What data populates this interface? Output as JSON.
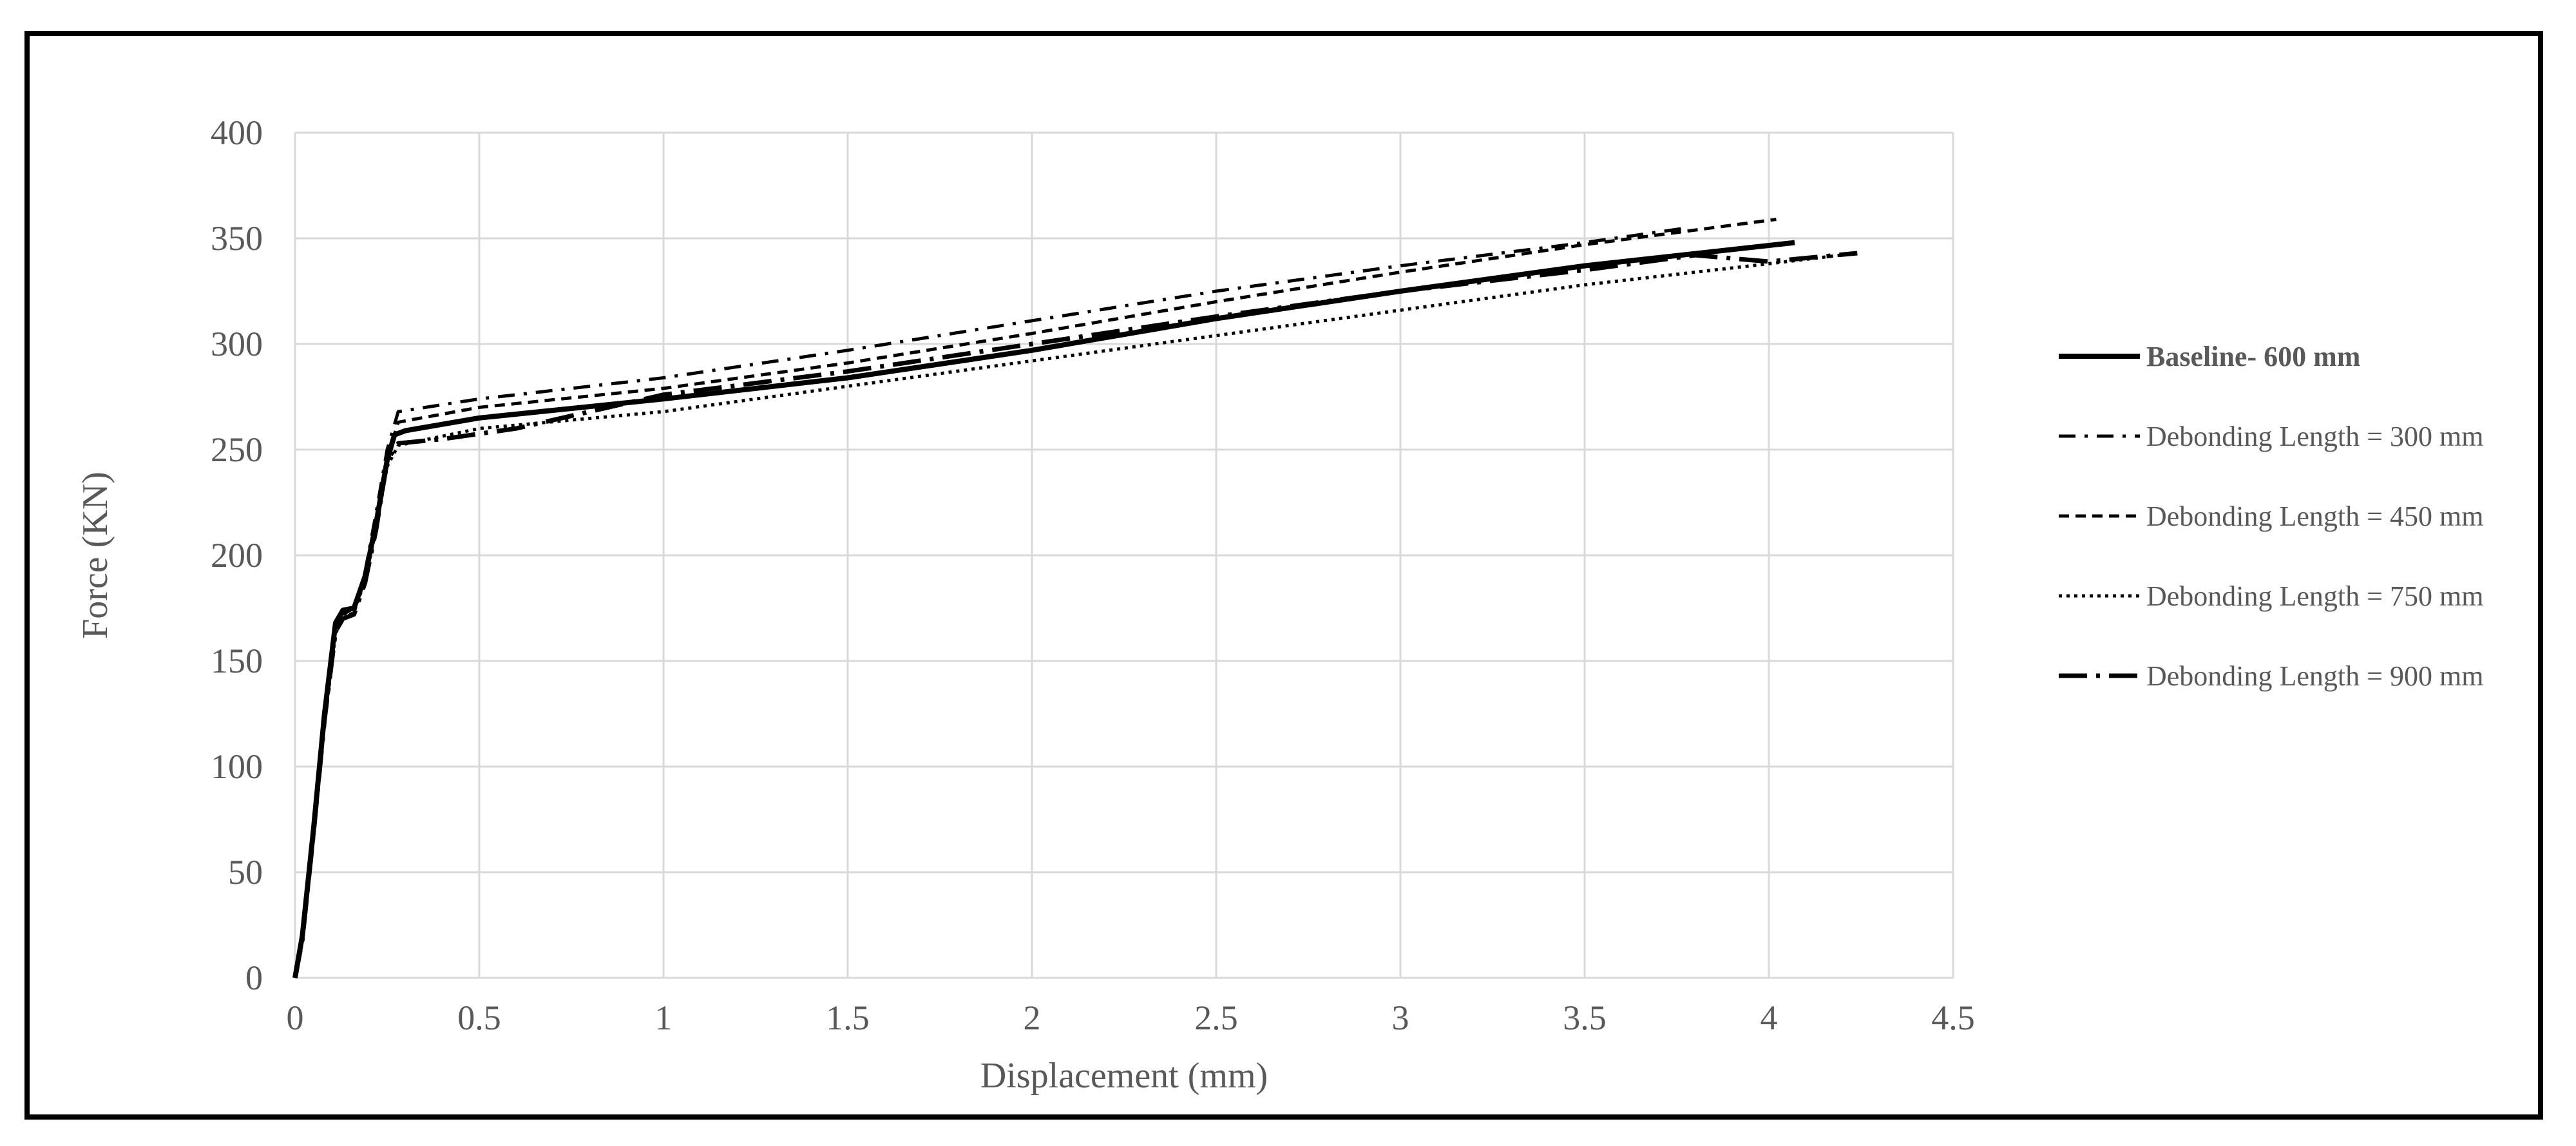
{
  "chart_data": {
    "type": "line",
    "xlabel": "Displacement (mm)",
    "ylabel": "Force (KN)",
    "xlim": [
      0,
      4.5
    ],
    "ylim": [
      0,
      400
    ],
    "x_ticks": [
      "0",
      "0.5",
      "1",
      "1.5",
      "2",
      "2.5",
      "3",
      "3.5",
      "4",
      "4.5"
    ],
    "y_ticks": [
      "0",
      "50",
      "100",
      "150",
      "200",
      "250",
      "300",
      "350",
      "400"
    ],
    "grid": true,
    "legend_position": "right",
    "series": [
      {
        "name": "Baseline- 600 mm",
        "style": "solid-thick",
        "bold_label": true,
        "points": [
          [
            0,
            0
          ],
          [
            0.02,
            20
          ],
          [
            0.05,
            70
          ],
          [
            0.08,
            125
          ],
          [
            0.11,
            168
          ],
          [
            0.13,
            174
          ],
          [
            0.16,
            175
          ],
          [
            0.19,
            190
          ],
          [
            0.22,
            215
          ],
          [
            0.25,
            245
          ],
          [
            0.27,
            257
          ],
          [
            0.3,
            259
          ],
          [
            0.5,
            265
          ],
          [
            1.0,
            274
          ],
          [
            1.5,
            284
          ],
          [
            2.0,
            297
          ],
          [
            2.5,
            312
          ],
          [
            3.0,
            325
          ],
          [
            3.5,
            337
          ],
          [
            4.07,
            348
          ]
        ]
      },
      {
        "name": "Debonding Length = 300 mm",
        "style": "dash-dot",
        "points": [
          [
            0,
            0
          ],
          [
            0.02,
            18
          ],
          [
            0.05,
            68
          ],
          [
            0.08,
            122
          ],
          [
            0.11,
            165
          ],
          [
            0.13,
            172
          ],
          [
            0.16,
            174
          ],
          [
            0.19,
            192
          ],
          [
            0.22,
            220
          ],
          [
            0.25,
            250
          ],
          [
            0.28,
            268
          ],
          [
            0.5,
            274
          ],
          [
            1.0,
            284
          ],
          [
            1.5,
            297
          ],
          [
            2.0,
            311
          ],
          [
            2.5,
            325
          ],
          [
            3.0,
            337
          ],
          [
            3.5,
            348
          ],
          [
            3.78,
            355
          ]
        ]
      },
      {
        "name": "Debonding Length = 450 mm",
        "style": "dashed",
        "points": [
          [
            0,
            0
          ],
          [
            0.02,
            18
          ],
          [
            0.05,
            68
          ],
          [
            0.08,
            122
          ],
          [
            0.11,
            166
          ],
          [
            0.13,
            172
          ],
          [
            0.16,
            175
          ],
          [
            0.19,
            190
          ],
          [
            0.22,
            215
          ],
          [
            0.25,
            246
          ],
          [
            0.28,
            263
          ],
          [
            0.5,
            270
          ],
          [
            1.0,
            279
          ],
          [
            1.5,
            291
          ],
          [
            2.0,
            305
          ],
          [
            2.5,
            320
          ],
          [
            3.0,
            334
          ],
          [
            3.5,
            347
          ],
          [
            4.02,
            359
          ]
        ]
      },
      {
        "name": "Debonding Length = 750 mm",
        "style": "dotted",
        "points": [
          [
            0,
            0
          ],
          [
            0.02,
            18
          ],
          [
            0.05,
            68
          ],
          [
            0.08,
            120
          ],
          [
            0.11,
            163
          ],
          [
            0.13,
            170
          ],
          [
            0.16,
            173
          ],
          [
            0.19,
            188
          ],
          [
            0.22,
            212
          ],
          [
            0.25,
            242
          ],
          [
            0.28,
            252
          ],
          [
            0.5,
            260
          ],
          [
            1.0,
            268
          ],
          [
            1.5,
            280
          ],
          [
            2.0,
            292
          ],
          [
            2.5,
            304
          ],
          [
            3.0,
            316
          ],
          [
            3.5,
            328
          ],
          [
            4.0,
            338
          ],
          [
            4.24,
            343
          ]
        ]
      },
      {
        "name": "Debonding Length = 900 mm",
        "style": "long-dash-dot",
        "points": [
          [
            0,
            0
          ],
          [
            0.02,
            18
          ],
          [
            0.05,
            68
          ],
          [
            0.08,
            122
          ],
          [
            0.11,
            164
          ],
          [
            0.13,
            170
          ],
          [
            0.16,
            172
          ],
          [
            0.19,
            187
          ],
          [
            0.22,
            212
          ],
          [
            0.25,
            245
          ],
          [
            0.28,
            253
          ],
          [
            0.4,
            255
          ],
          [
            0.6,
            260
          ],
          [
            0.8,
            268
          ],
          [
            1.0,
            276
          ],
          [
            1.5,
            287
          ],
          [
            2.0,
            300
          ],
          [
            2.5,
            313
          ],
          [
            3.0,
            325
          ],
          [
            3.5,
            335
          ],
          [
            3.8,
            342
          ],
          [
            4.0,
            339
          ],
          [
            4.24,
            343
          ]
        ]
      }
    ]
  }
}
